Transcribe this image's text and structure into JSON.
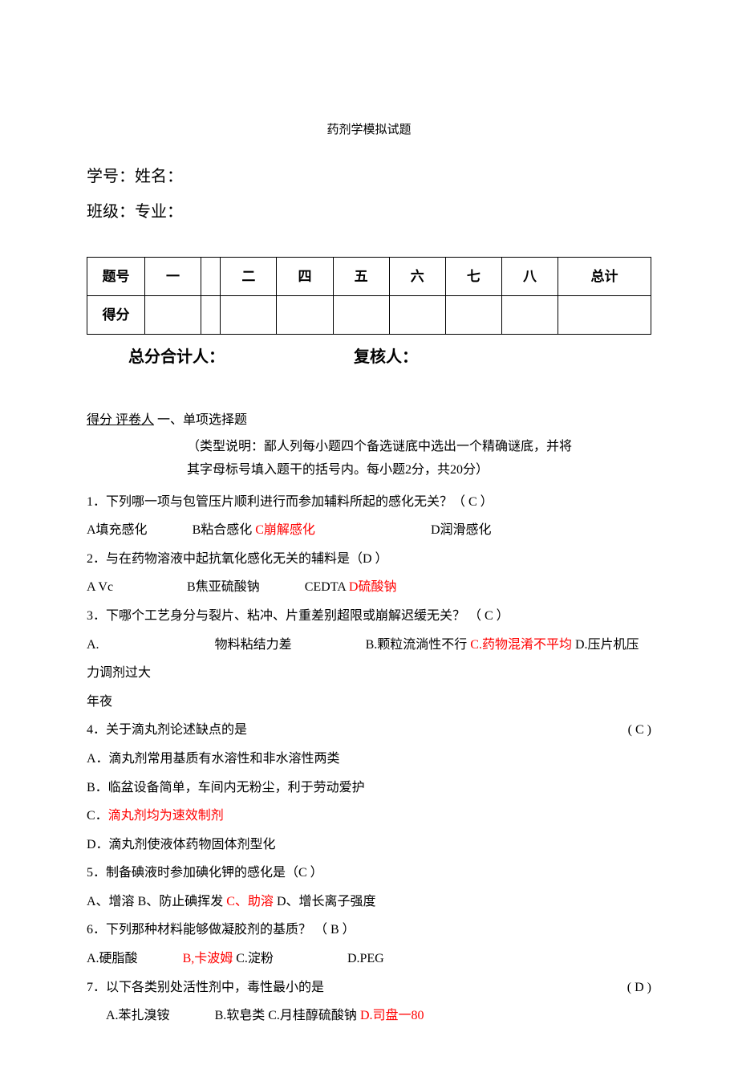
{
  "title": "药剂学模拟试题",
  "student_info": {
    "id_label": "学号：",
    "name_label": "姓名：",
    "class_label": "班级：",
    "major_label": "专业："
  },
  "score_table": {
    "headers": [
      "题号",
      "一",
      "",
      "二",
      "四",
      "五",
      "六",
      "七",
      "八",
      "总计"
    ],
    "score_label": "得分"
  },
  "totals": {
    "sum_label": "总分合计人：",
    "reviewer_label": "复核人："
  },
  "section1": {
    "score_reviewer": "得分 评卷人",
    "title": "一、单项选择题",
    "instruction_l1": "（类型说明：鄙人列每小题四个备选谜底中选出一个精确谜底，并将",
    "instruction_l2": "其字母标号填入题干的括号内。每小题2分，共20分）"
  },
  "questions": {
    "q1": {
      "text": "1．下列哪一项与包管压片顺利进行而参加辅料所起的感化无关？（ C ）",
      "a": "A填充感化",
      "b": "B粘合感化",
      "c": "C崩解感化",
      "d": "D润滑感化"
    },
    "q2": {
      "text": "2．与在药物溶液中起抗氧化感化无关的辅料是（D ）",
      "a": "A Vc",
      "b": "B焦亚硫酸钠",
      "c": "CEDTA",
      "d": "D硫酸钠"
    },
    "q3": {
      "text": "3．下哪个工艺身分与裂片、粘冲、片重差别超限或崩解迟缓无关？  （ C ）",
      "a": "A.",
      "a_text": "物料粘结力差",
      "b": "B.颗粒流淌性不行",
      "c": "C.药物混淆不平均",
      "d": "D.压片机压",
      "cont1": "力调剂过大",
      "cont2": "年夜"
    },
    "q4": {
      "text": "4．关于滴丸剂论述缺点的是",
      "answer": "( C  )",
      "a": "A．滴丸剂常用基质有水溶性和非水溶性两类",
      "b": "B．临盆设备简单，车间内无粉尘，利于劳动爱护",
      "c_prefix": "C．",
      "c_text": "滴丸剂均为速效制剂",
      "d": "D．滴丸剂使液体药物固体剂型化"
    },
    "q5": {
      "text": "5．制备碘液时参加碘化钾的感化是（C ）",
      "a": "A、增溶",
      "b": "B、防止碘挥发",
      "c": "C、助溶",
      "d": "D、增长离子强度"
    },
    "q6": {
      "text": "6．下列那种材料能够做凝胶剂的基质？  （ B ）",
      "a": "A.硬脂酸",
      "b": "B,卡波姆",
      "c": "C.淀粉",
      "d": "D.PEG"
    },
    "q7": {
      "text": "7．以下各类别处活性剂中，毒性最小的是",
      "answer": "( D  )",
      "a": "A.苯扎溴铵",
      "b": "B.软皂类",
      "c": "C.月桂醇硫酸钠",
      "d": "D.司盘一80"
    }
  }
}
